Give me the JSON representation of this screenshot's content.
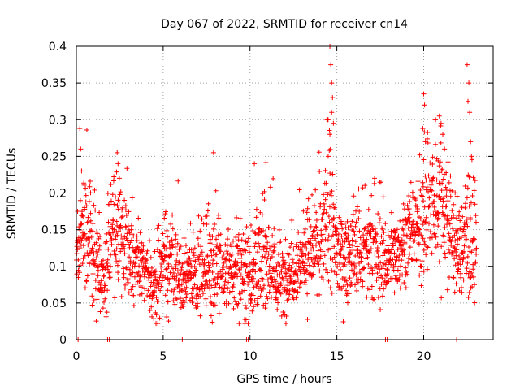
{
  "chart_data": {
    "type": "scatter",
    "title": "Day 067 of 2022, SRMTID for receiver cn14",
    "xlabel": "GPS time / hours",
    "ylabel": "SRMTID / TECUs",
    "xlim": [
      0,
      24
    ],
    "ylim": [
      0,
      0.4
    ],
    "xticks": [
      0,
      5,
      10,
      15,
      20
    ],
    "xtick_labels": [
      "0",
      "5",
      "10",
      "15",
      "20"
    ],
    "yticks": [
      0,
      0.05,
      0.1,
      0.15,
      0.2,
      0.25,
      0.3,
      0.35,
      0.4
    ],
    "ytick_labels": [
      "0",
      "0.05",
      "0.1",
      "0.15",
      "0.2",
      "0.25",
      "0.3",
      "0.35",
      "0.4"
    ],
    "grid": true,
    "marker": "+",
    "color": "#ff0000",
    "series": [
      {
        "name": "SRMTID",
        "profile": [
          [
            0.0,
            0.12,
            0.03
          ],
          [
            0.5,
            0.15,
            0.04
          ],
          [
            1.0,
            0.13,
            0.04
          ],
          [
            1.5,
            0.08,
            0.03
          ],
          [
            2.0,
            0.14,
            0.05
          ],
          [
            2.5,
            0.15,
            0.04
          ],
          [
            3.0,
            0.13,
            0.04
          ],
          [
            3.5,
            0.1,
            0.03
          ],
          [
            4.0,
            0.09,
            0.03
          ],
          [
            4.5,
            0.07,
            0.03
          ],
          [
            5.0,
            0.11,
            0.04
          ],
          [
            5.5,
            0.1,
            0.04
          ],
          [
            6.0,
            0.08,
            0.03
          ],
          [
            6.5,
            0.09,
            0.03
          ],
          [
            7.0,
            0.09,
            0.03
          ],
          [
            7.5,
            0.11,
            0.04
          ],
          [
            8.0,
            0.1,
            0.04
          ],
          [
            8.5,
            0.09,
            0.03
          ],
          [
            9.0,
            0.09,
            0.03
          ],
          [
            9.5,
            0.1,
            0.04
          ],
          [
            10.0,
            0.09,
            0.04
          ],
          [
            10.5,
            0.1,
            0.04
          ],
          [
            11.0,
            0.12,
            0.04
          ],
          [
            11.5,
            0.08,
            0.03
          ],
          [
            12.0,
            0.08,
            0.03
          ],
          [
            12.5,
            0.1,
            0.03
          ],
          [
            13.0,
            0.11,
            0.03
          ],
          [
            13.5,
            0.12,
            0.04
          ],
          [
            14.0,
            0.12,
            0.04
          ],
          [
            14.5,
            0.17,
            0.06
          ],
          [
            15.0,
            0.12,
            0.04
          ],
          [
            15.5,
            0.11,
            0.03
          ],
          [
            16.0,
            0.12,
            0.04
          ],
          [
            16.5,
            0.11,
            0.04
          ],
          [
            17.0,
            0.12,
            0.04
          ],
          [
            17.5,
            0.11,
            0.04
          ],
          [
            18.0,
            0.11,
            0.03
          ],
          [
            18.5,
            0.12,
            0.03
          ],
          [
            19.0,
            0.14,
            0.03
          ],
          [
            19.5,
            0.14,
            0.03
          ],
          [
            20.0,
            0.17,
            0.05
          ],
          [
            20.5,
            0.18,
            0.05
          ],
          [
            21.0,
            0.2,
            0.06
          ],
          [
            21.5,
            0.15,
            0.04
          ],
          [
            22.0,
            0.12,
            0.04
          ],
          [
            22.5,
            0.14,
            0.05
          ],
          [
            23.0,
            0.12,
            0.04
          ]
        ],
        "highlights": [
          [
            0.2,
            0.288
          ],
          [
            0.25,
            0.26
          ],
          [
            0.3,
            0.23
          ],
          [
            2.35,
            0.255
          ],
          [
            2.4,
            0.24
          ],
          [
            7.9,
            0.255
          ],
          [
            10.25,
            0.24
          ],
          [
            14.6,
            0.4
          ],
          [
            14.65,
            0.375
          ],
          [
            14.7,
            0.35
          ],
          [
            14.75,
            0.33
          ],
          [
            14.7,
            0.31
          ],
          [
            14.6,
            0.28
          ],
          [
            14.5,
            0.25
          ],
          [
            14.8,
            0.295
          ],
          [
            20.0,
            0.335
          ],
          [
            20.05,
            0.32
          ],
          [
            19.95,
            0.288
          ],
          [
            20.1,
            0.27
          ],
          [
            20.9,
            0.305
          ],
          [
            21.0,
            0.295
          ],
          [
            21.1,
            0.28
          ],
          [
            21.2,
            0.26
          ],
          [
            22.5,
            0.375
          ],
          [
            22.6,
            0.35
          ],
          [
            22.55,
            0.325
          ],
          [
            22.65,
            0.31
          ],
          [
            22.7,
            0.27
          ],
          [
            22.75,
            0.25
          ]
        ],
        "zeros": [
          0.1,
          1.8,
          1.9,
          6.1,
          9.8,
          9.9,
          17.8,
          17.9,
          21.9
        ]
      }
    ]
  }
}
